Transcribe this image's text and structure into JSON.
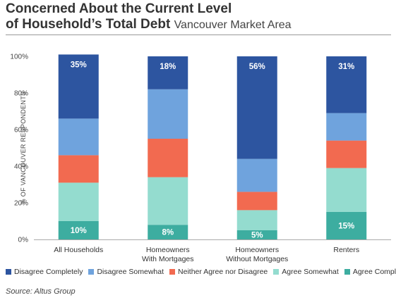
{
  "header": {
    "title_line1": "Concerned About the Current Level",
    "title_line2": "of Household’s Total Debt",
    "subtitle": "Vancouver Market Area"
  },
  "source": "Source: Altus Group",
  "chart_data": {
    "type": "bar",
    "stacked": true,
    "categories": [
      [
        "All Households"
      ],
      [
        "Homeowners",
        "With Mortgages"
      ],
      [
        "Homeowners",
        "Without Mortgages"
      ],
      [
        "Renters"
      ]
    ],
    "ylabel": "% OF VANCOUVER RESPONDENTS",
    "ylim": [
      0,
      100
    ],
    "yticks": [
      "0%",
      "20%",
      "40%",
      "60%",
      "80%",
      "100%"
    ],
    "legend_position": "bottom",
    "series": [
      {
        "name": "Agree Completely",
        "color": "#3dada0",
        "values": [
          10,
          8,
          5,
          15
        ],
        "labels": [
          "10%",
          "8%",
          "5%",
          "15%"
        ]
      },
      {
        "name": "Agree Somewhat",
        "color": "#94dccf",
        "values": [
          21,
          26,
          11,
          24
        ]
      },
      {
        "name": "Neither Agree nor Disagree",
        "color": "#f26a50",
        "values": [
          15,
          21,
          10,
          15
        ]
      },
      {
        "name": "Disagree Somewhat",
        "color": "#6fa3dd",
        "values": [
          20,
          27,
          18,
          15
        ]
      },
      {
        "name": "Disagree Completely",
        "color": "#2d55a0",
        "values": [
          35,
          18,
          56,
          31
        ],
        "labels": [
          "35%",
          "18%",
          "56%",
          "31%"
        ]
      }
    ],
    "legend_order": [
      "Disagree Completely",
      "Disagree Somewhat",
      "Neither Agree nor Disagree",
      "Agree Somewhat",
      "Agree Completely"
    ]
  }
}
